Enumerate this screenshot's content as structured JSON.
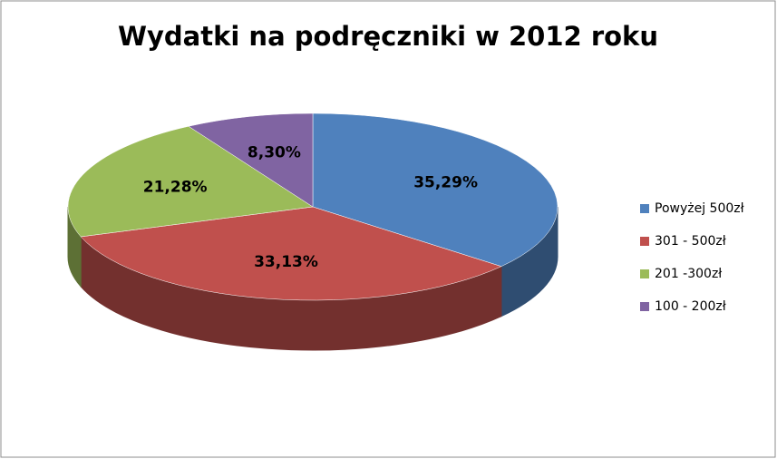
{
  "chart_data": {
    "type": "pie",
    "title": "Wydatki na podręczniki w 2012 roku",
    "categories": [
      "Powyżej 500zł",
      "301 - 500zł",
      "201 -300zł",
      "100 - 200zł"
    ],
    "values": [
      35.29,
      33.13,
      21.28,
      8.3
    ],
    "value_labels": [
      "35,29%",
      "33,13%",
      "21,28%",
      "8,30%"
    ],
    "colors": [
      "#4f81bd",
      "#c0504d",
      "#9bbb59",
      "#8064a2"
    ],
    "legend": "right"
  }
}
